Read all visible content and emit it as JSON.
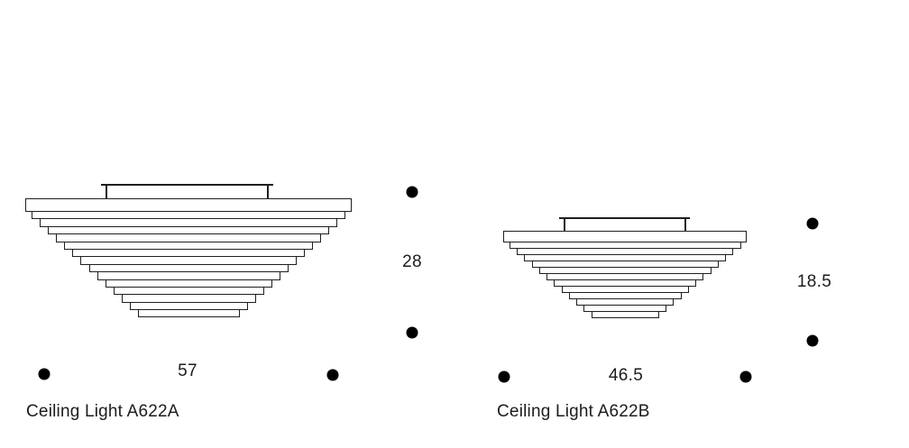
{
  "colors": {
    "background": "#ffffff",
    "line": "#1f1f1f",
    "text": "#1c1c1c",
    "dot": "#000000"
  },
  "products": [
    {
      "label": "Ceiling Light A622A",
      "width_cm": "57",
      "height_cm": "28",
      "drawing": {
        "top_tier_width": 362,
        "top_tier_height": 15,
        "tier_count": 14,
        "tier_height": 9.4,
        "tier_first_width": 348,
        "tier_last_width": 113
      }
    },
    {
      "label": "Ceiling Light A622B",
      "width_cm": "46.5",
      "height_cm": "18.5",
      "drawing": {
        "top_tier_width": 270,
        "top_tier_height": 13,
        "tier_count": 12,
        "tier_height": 8,
        "tier_first_width": 257,
        "tier_last_width": 75
      }
    }
  ]
}
